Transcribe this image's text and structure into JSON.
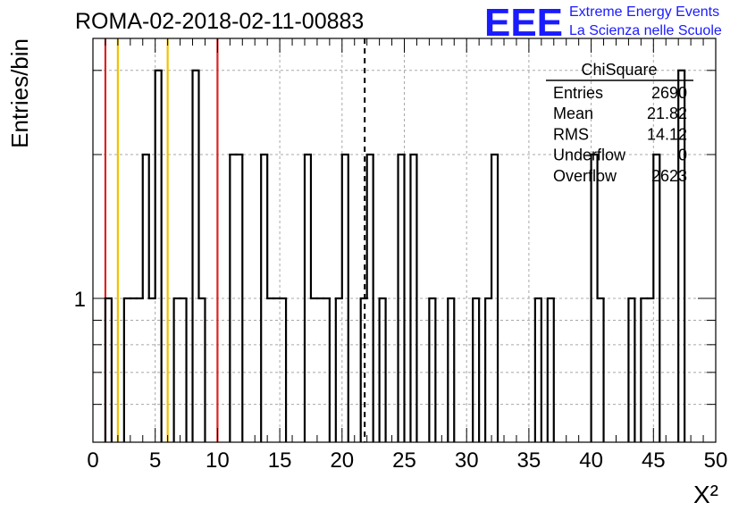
{
  "header": {
    "run_title": "ROMA-02-2018-02-11-00883",
    "logo_text": "EEE",
    "logo_line1": "Extreme Energy Events",
    "logo_line2": "La Scienza nelle Scuole",
    "logo_color": "#1a1aff"
  },
  "chart_data": {
    "type": "bar",
    "title": "ROMA-02-2018-02-11-00883",
    "xlabel": "X²",
    "ylabel": "Entries/bin",
    "xlim": [
      0,
      50
    ],
    "ylim": [
      0.5,
      3.5
    ],
    "y_scale": "log",
    "grid": true,
    "x_ticks": [
      "0",
      "5",
      "10",
      "15",
      "20",
      "25",
      "30",
      "35",
      "40",
      "45",
      "50"
    ],
    "y_ticks": [
      "1"
    ],
    "bin_width": 0.5,
    "bins": [
      {
        "x": 1.0,
        "y": 1
      },
      {
        "x": 2.5,
        "y": 1
      },
      {
        "x": 3.0,
        "y": 1
      },
      {
        "x": 3.5,
        "y": 1
      },
      {
        "x": 4.0,
        "y": 2
      },
      {
        "x": 4.5,
        "y": 1
      },
      {
        "x": 5.0,
        "y": 3
      },
      {
        "x": 6.5,
        "y": 1
      },
      {
        "x": 7.0,
        "y": 1
      },
      {
        "x": 8.0,
        "y": 3
      },
      {
        "x": 8.5,
        "y": 1
      },
      {
        "x": 11.0,
        "y": 2
      },
      {
        "x": 11.5,
        "y": 2
      },
      {
        "x": 13.5,
        "y": 2
      },
      {
        "x": 14.0,
        "y": 1
      },
      {
        "x": 14.5,
        "y": 1
      },
      {
        "x": 15.0,
        "y": 1
      },
      {
        "x": 17.0,
        "y": 2
      },
      {
        "x": 17.5,
        "y": 1
      },
      {
        "x": 18.0,
        "y": 1
      },
      {
        "x": 18.5,
        "y": 1
      },
      {
        "x": 19.5,
        "y": 1
      },
      {
        "x": 20.0,
        "y": 2
      },
      {
        "x": 21.5,
        "y": 1
      },
      {
        "x": 22.0,
        "y": 2
      },
      {
        "x": 23.0,
        "y": 1
      },
      {
        "x": 24.5,
        "y": 2
      },
      {
        "x": 25.5,
        "y": 2
      },
      {
        "x": 27.0,
        "y": 1
      },
      {
        "x": 28.5,
        "y": 1
      },
      {
        "x": 30.5,
        "y": 1
      },
      {
        "x": 31.5,
        "y": 1
      },
      {
        "x": 32.0,
        "y": 2
      },
      {
        "x": 35.5,
        "y": 1
      },
      {
        "x": 36.5,
        "y": 1
      },
      {
        "x": 40.0,
        "y": 2
      },
      {
        "x": 40.5,
        "y": 1
      },
      {
        "x": 43.0,
        "y": 1
      },
      {
        "x": 44.0,
        "y": 1
      },
      {
        "x": 44.5,
        "y": 1
      },
      {
        "x": 45.0,
        "y": 2
      },
      {
        "x": 47.0,
        "y": 3
      }
    ],
    "vertical_lines": [
      {
        "x": 1.0,
        "color": "#dd2222",
        "style": "solid"
      },
      {
        "x": 2.0,
        "color": "#f2c200",
        "style": "solid"
      },
      {
        "x": 6.0,
        "color": "#f2c200",
        "style": "solid"
      },
      {
        "x": 10.0,
        "color": "#dd2222",
        "style": "solid"
      },
      {
        "x": 21.82,
        "color": "#000000",
        "style": "dashed"
      }
    ],
    "stats_box": {
      "title": "ChiSquare",
      "rows": [
        {
          "label": "Entries",
          "value": "2690"
        },
        {
          "label": "Mean",
          "value": "21.82"
        },
        {
          "label": "RMS",
          "value": "14.12"
        },
        {
          "label": "Underflow",
          "value": "0"
        },
        {
          "label": "Overflow",
          "value": "2623"
        }
      ]
    }
  }
}
